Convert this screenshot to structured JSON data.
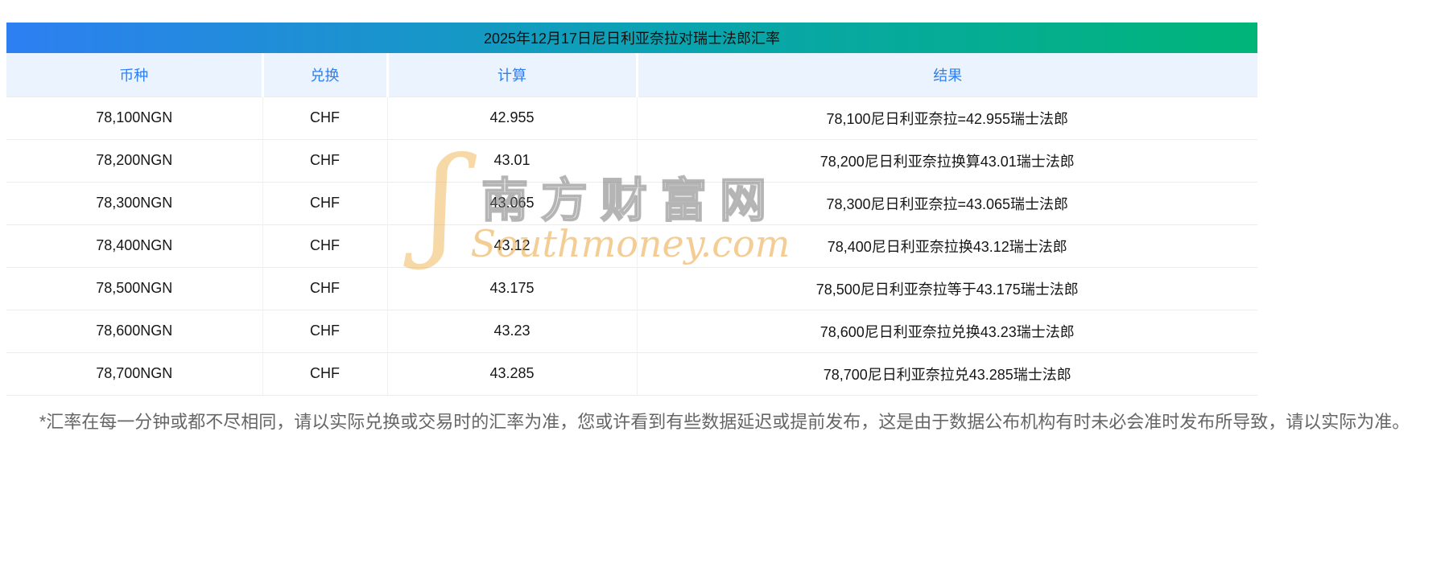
{
  "page": {
    "title": "2025年12月17日尼日利亚奈拉对瑞士法郎汇率"
  },
  "table": {
    "columns": [
      "币种",
      "兑换",
      "计算",
      "结果"
    ],
    "rows": [
      {
        "currency": "78,100NGN",
        "exchange": "CHF",
        "calc": "42.955",
        "result": "78,100尼日利亚奈拉=42.955瑞士法郎"
      },
      {
        "currency": "78,200NGN",
        "exchange": "CHF",
        "calc": "43.01",
        "result": "78,200尼日利亚奈拉换算43.01瑞士法郎"
      },
      {
        "currency": "78,300NGN",
        "exchange": "CHF",
        "calc": "43.065",
        "result": "78,300尼日利亚奈拉=43.065瑞士法郎"
      },
      {
        "currency": "78,400NGN",
        "exchange": "CHF",
        "calc": "43.12",
        "result": "78,400尼日利亚奈拉换43.12瑞士法郎"
      },
      {
        "currency": "78,500NGN",
        "exchange": "CHF",
        "calc": "43.175",
        "result": "78,500尼日利亚奈拉等于43.175瑞士法郎"
      },
      {
        "currency": "78,600NGN",
        "exchange": "CHF",
        "calc": "43.23",
        "result": "78,600尼日利亚奈拉兑换43.23瑞士法郎"
      },
      {
        "currency": "78,700NGN",
        "exchange": "CHF",
        "calc": "43.285",
        "result": "78,700尼日利亚奈拉兑43.285瑞士法郎"
      }
    ]
  },
  "watermark": {
    "swoosh": "ʃ",
    "cn": "南方财富网",
    "en": "Southmoney.com"
  },
  "footer": {
    "note": "*汇率在每一分钟或都不尽相同，请以实际兑换或交易时的汇率为准，您或许看到有些数据延迟或提前发布，这是由于数据公布机构有时未必会准时发布所导致，请以实际为准。"
  },
  "colors": {
    "header_gradient_start": "#2e7ff2",
    "header_gradient_end": "#00b578",
    "table_header_bg": "#eaf3fe",
    "table_header_text": "#2e7ff2",
    "watermark_gold": "#e9a43c"
  }
}
